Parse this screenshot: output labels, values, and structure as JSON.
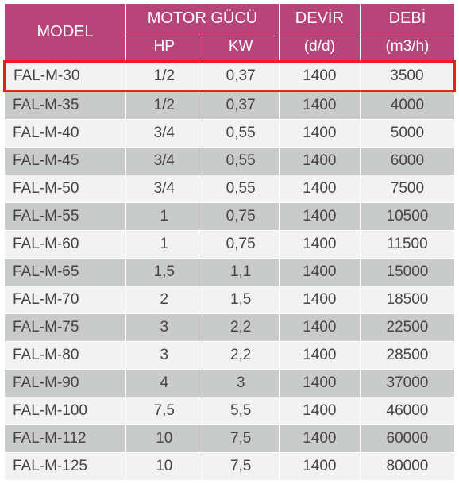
{
  "colors": {
    "header_bg": "#b8457a",
    "header_fg": "#ffffff",
    "row_odd": "#f2f2f2",
    "row_even": "#c9caca",
    "cell_fg": "#444444",
    "highlight": "#e52220"
  },
  "columns": {
    "model": "MODEL",
    "motor": "MOTOR GÜCÜ",
    "hp": "HP",
    "kw": "KW",
    "devir": "DEVİR",
    "devir_sub": "(d/d)",
    "debi": "DEBİ",
    "debi_sub": "(m3/h)"
  },
  "highlight_row": 0,
  "rows": [
    {
      "model": "FAL-M-30",
      "hp": "1/2",
      "kw": "0,37",
      "devir": "1400",
      "debi": "3500"
    },
    {
      "model": "FAL-M-35",
      "hp": "1/2",
      "kw": "0,37",
      "devir": "1400",
      "debi": "4000"
    },
    {
      "model": "FAL-M-40",
      "hp": "3/4",
      "kw": "0,55",
      "devir": "1400",
      "debi": "5000"
    },
    {
      "model": "FAL-M-45",
      "hp": "3/4",
      "kw": "0,55",
      "devir": "1400",
      "debi": "6000"
    },
    {
      "model": "FAL-M-50",
      "hp": "3/4",
      "kw": "0,55",
      "devir": "1400",
      "debi": "7500"
    },
    {
      "model": "FAL-M-55",
      "hp": "1",
      "kw": "0,75",
      "devir": "1400",
      "debi": "10500"
    },
    {
      "model": "FAL-M-60",
      "hp": "1",
      "kw": "0,75",
      "devir": "1400",
      "debi": "11500"
    },
    {
      "model": "FAL-M-65",
      "hp": "1,5",
      "kw": "1,1",
      "devir": "1400",
      "debi": "15000"
    },
    {
      "model": "FAL-M-70",
      "hp": "2",
      "kw": "1,5",
      "devir": "1400",
      "debi": "18500"
    },
    {
      "model": "FAL-M-75",
      "hp": "3",
      "kw": "2,2",
      "devir": "1400",
      "debi": "22500"
    },
    {
      "model": "FAL-M-80",
      "hp": "3",
      "kw": "2,2",
      "devir": "1400",
      "debi": "28500"
    },
    {
      "model": "FAL-M-90",
      "hp": "4",
      "kw": "3",
      "devir": "1400",
      "debi": "37000"
    },
    {
      "model": "FAL-M-100",
      "hp": "7,5",
      "kw": "5,5",
      "devir": "1400",
      "debi": "46000"
    },
    {
      "model": "FAL-M-112",
      "hp": "10",
      "kw": "7,5",
      "devir": "1400",
      "debi": "60000"
    },
    {
      "model": "FAL-M-125",
      "hp": "10",
      "kw": "7,5",
      "devir": "1400",
      "debi": "80000"
    }
  ]
}
